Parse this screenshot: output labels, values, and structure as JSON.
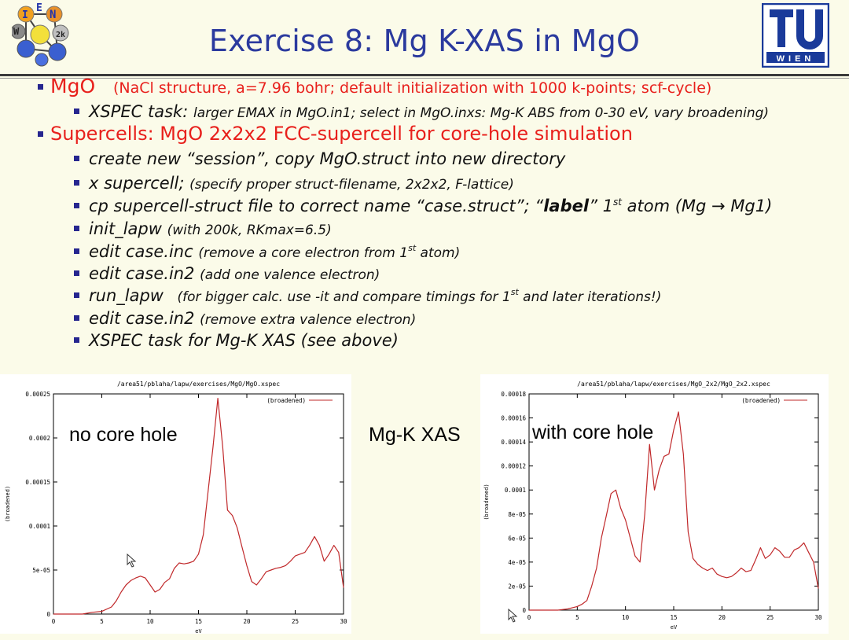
{
  "title": "Exercise 8: Mg K-XAS in MgO",
  "bullets": [
    {
      "head": "MgO",
      "rest": "(NaCl structure, a=7.96 bohr; default initialization with 1000 k-points; scf-cycle)",
      "sub": [
        {
          "a": "XSPEC task:",
          "b": "larger EMAX in MgO.in1; select in MgO.inxs: Mg-K ABS from 0-30 eV, vary broadening)"
        }
      ]
    },
    {
      "head": "Supercells: MgO 2x2x2 FCC-supercell for core-hole simulation",
      "sub": [
        {
          "a": "create new “session”, copy MgO.struct into new directory"
        },
        {
          "a": "x supercell;",
          "b": "(specify proper struct-filename, 2x2x2, F-lattice)"
        },
        {
          "a": "cp supercell-struct file to correct name “case.struct”; “",
          "bold": "label",
          "c": "” 1",
          "sup": "st",
          "d": " atom (Mg → Mg1)"
        },
        {
          "a": "init_lapw",
          "b": "(with 200k, RKmax=6.5)"
        },
        {
          "a": "edit case.inc",
          "b": "(remove a core electron from 1",
          "sup": "st",
          "c": " atom)"
        },
        {
          "a": "edit case.in2",
          "b": "(add one valence electron)"
        },
        {
          "a": "run_lapw",
          "b": "  (for bigger calc. use -it and compare timings for 1",
          "sup": "st",
          "c": " and later iterations!)"
        },
        {
          "a": "edit case.in2",
          "b": "(remove extra valence electron)"
        },
        {
          "a": "XSPEC task for Mg-K XAS (see above)"
        }
      ]
    }
  ],
  "logo_left_text": "WIEN 2k",
  "logo_right_text": "TU WIEN",
  "center_label": "Mg-K XAS",
  "colors": {
    "title": "#2b3a9e",
    "red": "#e8201c",
    "curve": "#c0282a",
    "bg": "#fbfbe9"
  },
  "chart_data": [
    {
      "type": "line",
      "title": "/area51/pblaha/lapw/exercises/MgO/MgO.xspec",
      "annotation": "no core hole",
      "xlabel": "eV",
      "ylabel": "(broadened)",
      "legend": "(broadened)",
      "xlim": [
        0,
        30
      ],
      "ylim": [
        0,
        0.00025
      ],
      "xticks": [
        "0",
        "5",
        "10",
        "15",
        "20",
        "25",
        "30"
      ],
      "yticks": [
        "0",
        "5e-05",
        "0.0001",
        "0.00015",
        "0.0002",
        "0.00025"
      ],
      "series": [
        {
          "name": "(broadened)",
          "x": [
            0,
            3,
            4,
            5,
            6,
            6.5,
            7,
            7.5,
            8,
            8.5,
            9,
            9.5,
            10,
            10.5,
            11,
            11.5,
            12,
            12.5,
            13,
            13.5,
            14,
            14.5,
            15,
            15.5,
            16,
            16.5,
            17,
            17.5,
            18,
            18.5,
            19,
            19.5,
            20,
            20.5,
            21,
            21.5,
            22,
            22.5,
            23,
            23.5,
            24,
            24.5,
            25,
            25.5,
            26,
            26.5,
            27,
            27.5,
            28,
            28.5,
            29,
            29.5,
            30
          ],
          "y": [
            0,
            0,
            2e-06,
            3e-06,
            8e-06,
            1.5e-05,
            2.5e-05,
            3.3e-05,
            3.8e-05,
            4.1e-05,
            4.3e-05,
            4.1e-05,
            3.3e-05,
            2.5e-05,
            2.8e-05,
            3.6e-05,
            4e-05,
            5.2e-05,
            5.8e-05,
            5.7e-05,
            5.8e-05,
            6e-05,
            6.8e-05,
            9e-05,
            0.00014,
            0.00019,
            0.000245,
            0.00019,
            0.000118,
            0.000112,
            9.8e-05,
            7.6e-05,
            5.5e-05,
            3.7e-05,
            3.3e-05,
            4e-05,
            4.8e-05,
            5e-05,
            5.2e-05,
            5.3e-05,
            5.5e-05,
            6e-05,
            6.6e-05,
            6.8e-05,
            7e-05,
            7.8e-05,
            8.8e-05,
            7.8e-05,
            6e-05,
            6.8e-05,
            7.8e-05,
            7e-05,
            3e-05
          ]
        }
      ]
    },
    {
      "type": "line",
      "title": "/area51/pblaha/lapw/exercises/MgO_2x2/MgO_2x2.xspec",
      "annotation": "with core hole",
      "xlabel": "eV",
      "ylabel": "(broadened)",
      "legend": "(broadened)",
      "xlim": [
        0,
        30
      ],
      "ylim": [
        0,
        0.00018
      ],
      "xticks": [
        "0",
        "5",
        "10",
        "15",
        "20",
        "25",
        "30"
      ],
      "yticks": [
        "0",
        "2e-05",
        "4e-05",
        "6e-05",
        "8e-05",
        "0.0001",
        "0.00012",
        "0.00014",
        "0.00016",
        "0.00018"
      ],
      "series": [
        {
          "name": "(broadened)",
          "x": [
            0,
            3,
            4,
            5,
            5.5,
            6,
            6.5,
            7,
            7.5,
            8,
            8.5,
            9,
            9.5,
            10,
            10.5,
            11,
            11.5,
            12,
            12.5,
            13,
            13.5,
            14,
            14.5,
            15,
            15.5,
            16,
            16.5,
            17,
            17.5,
            18,
            18.5,
            19,
            19.5,
            20,
            20.5,
            21,
            21.5,
            22,
            22.5,
            23,
            23.5,
            24,
            24.5,
            25,
            25.5,
            26,
            26.5,
            27,
            27.5,
            28,
            28.5,
            29,
            29.5,
            30
          ],
          "y": [
            0,
            0,
            1e-06,
            3e-06,
            5e-06,
            8e-06,
            2e-05,
            3.5e-05,
            6e-05,
            7.8e-05,
            9.7e-05,
            0.0001,
            8.5e-05,
            7.5e-05,
            6e-05,
            4.5e-05,
            4e-05,
            8e-05,
            0.000138,
            0.0001,
            0.000117,
            0.000128,
            0.00013,
            0.00015,
            0.000165,
            0.00013,
            6.5e-05,
            4.3e-05,
            3.8e-05,
            3.5e-05,
            3.3e-05,
            3.5e-05,
            3e-05,
            2.8e-05,
            2.7e-05,
            2.8e-05,
            3.1e-05,
            3.5e-05,
            3.2e-05,
            3.3e-05,
            4.2e-05,
            5.2e-05,
            4.3e-05,
            4.6e-05,
            5.2e-05,
            4.9e-05,
            4.4e-05,
            4.4e-05,
            5e-05,
            5.2e-05,
            5.6e-05,
            4.8e-05,
            4e-05,
            1.8e-05
          ]
        }
      ]
    }
  ]
}
